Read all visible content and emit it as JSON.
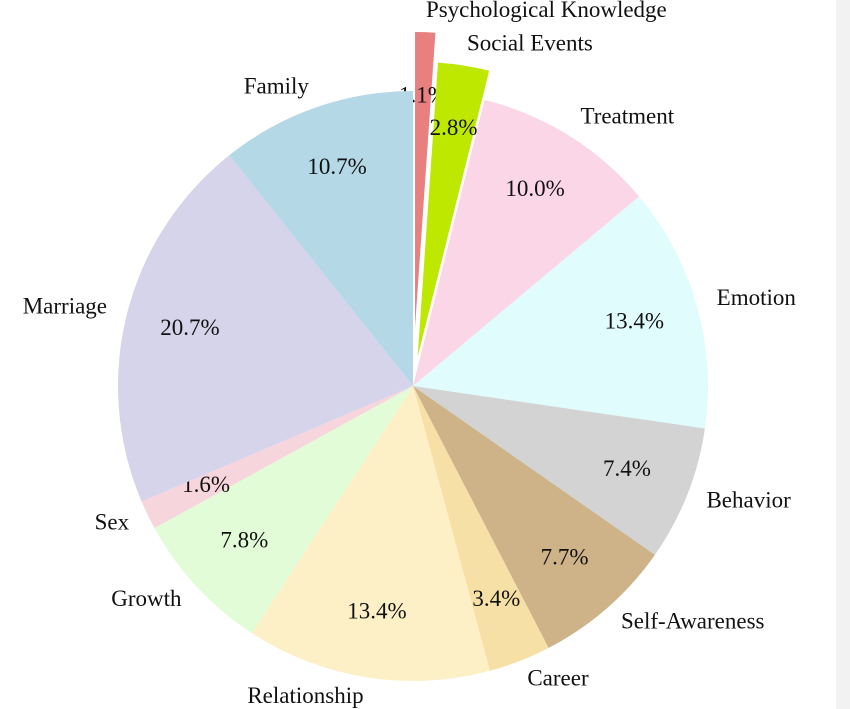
{
  "chart_data": {
    "type": "pie",
    "categories": [
      "Psychological Knowledge",
      "Social Events",
      "Treatment",
      "Emotion",
      "Behavior",
      "Self-Awareness",
      "Career",
      "Relationship",
      "Growth",
      "Sex",
      "Marriage",
      "Family"
    ],
    "values": [
      1.1,
      2.8,
      10.0,
      13.4,
      7.4,
      7.7,
      3.4,
      13.4,
      7.8,
      1.6,
      20.7,
      10.7
    ],
    "value_labels": [
      "1.1%",
      "2.8%",
      "10.0%",
      "13.4%",
      "7.4%",
      "7.7%",
      "3.4%",
      "13.4%",
      "7.8%",
      "1.6%",
      "20.7%",
      "10.7%"
    ],
    "colors": [
      "#e88080",
      "#bfe800",
      "#fbd6e6",
      "#e0fcfd",
      "#d3d3d3",
      "#cdb387",
      "#f6e0a6",
      "#fdefc6",
      "#e2fcd8",
      "#f7d5dd",
      "#d5d4ea",
      "#b4d8e6"
    ],
    "explode": [
      0.2,
      0.1,
      0,
      0,
      0,
      0,
      0,
      0,
      0,
      0,
      0,
      0
    ]
  }
}
